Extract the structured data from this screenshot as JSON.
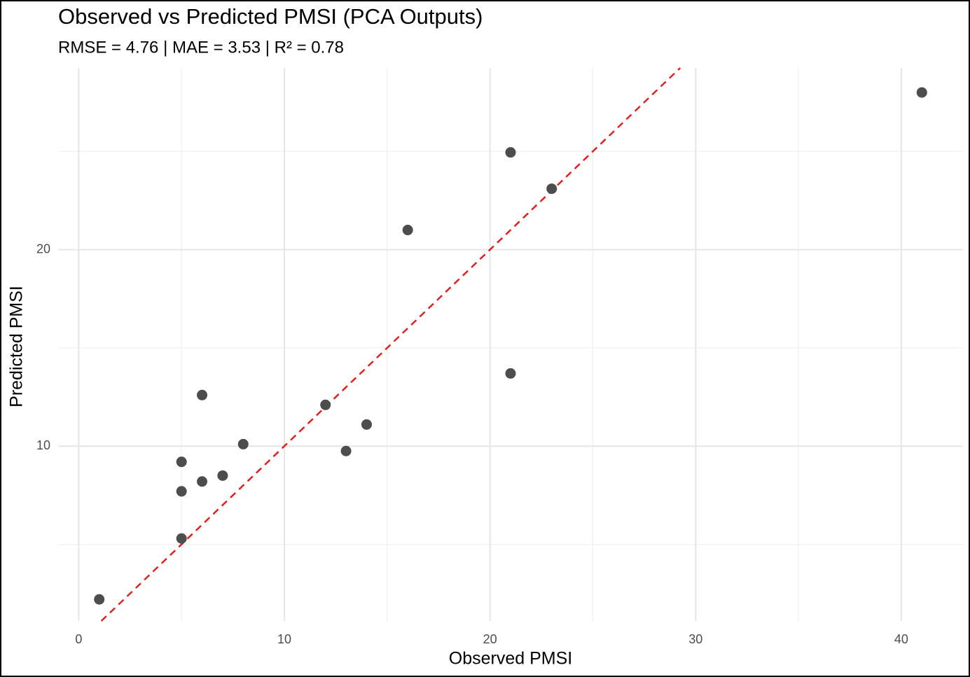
{
  "chart_data": {
    "type": "scatter",
    "title": "Observed vs Predicted PMSI (PCA Outputs)",
    "subtitle": "RMSE = 4.76 | MAE = 3.53 | R² = 0.78",
    "x_label": "Observed PMSI",
    "y_label": "Predicted PMSI",
    "x": [
      1,
      5,
      5,
      5,
      6,
      6,
      7,
      8,
      12,
      13,
      14,
      16,
      21,
      21,
      23,
      41
    ],
    "series": [
      {
        "color": "#4d4d4d",
        "values": [
          2.2,
          5.3,
          7.7,
          9.2,
          8.2,
          12.6,
          8.5,
          10.1,
          12.1,
          9.75,
          11.1,
          21.0,
          13.7,
          24.95,
          23.1,
          28.0
        ]
      }
    ],
    "xlim": [
      -1,
      43
    ],
    "ylim": [
      1.1,
      29.25
    ],
    "xticks": [
      0,
      10,
      20,
      30,
      40
    ],
    "yticks": [
      10,
      20
    ],
    "x_minor_ticks": [
      5,
      15,
      25,
      35
    ],
    "y_minor_ticks": [
      5,
      15,
      25
    ],
    "grid": true,
    "identity_line": true,
    "identity_line_color": "#e02020"
  }
}
